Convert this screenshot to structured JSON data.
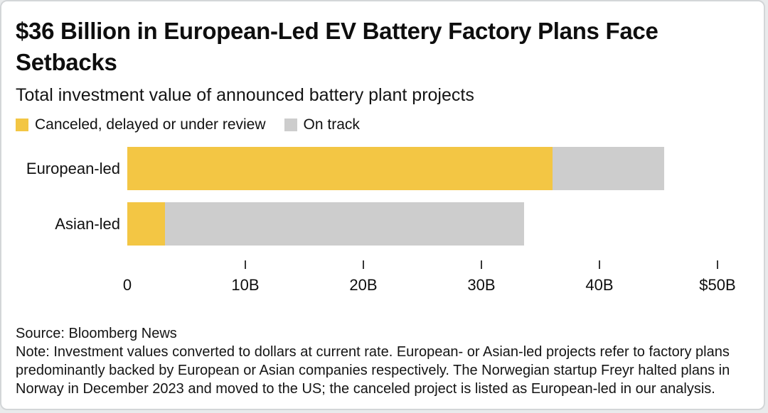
{
  "header": {
    "title": "$36 Billion in European-Led EV Battery Factory Plans Face Setbacks",
    "subtitle": "Total investment value of announced battery plant projects"
  },
  "legend": {
    "canceled_label": "Canceled, delayed or under review",
    "on_track_label": "On track"
  },
  "colors": {
    "canceled": "#F3C644",
    "on_track": "#CDCDCD",
    "tick": "#383838"
  },
  "chart_data": {
    "type": "bar",
    "orientation": "horizontal",
    "stacked": true,
    "title": "$36 Billion in European-Led EV Battery Factory Plans Face Setbacks",
    "subtitle": "Total investment value of announced battery plant projects",
    "categories": [
      "European-led",
      "Asian-led"
    ],
    "series": [
      {
        "name": "Canceled, delayed or under review",
        "color": "#F3C644",
        "values": [
          36,
          3.2
        ]
      },
      {
        "name": "On track",
        "color": "#CDCDCD",
        "values": [
          9.5,
          30.4
        ]
      }
    ],
    "units": "billions of US dollars",
    "xlim": [
      0,
      50
    ],
    "x_ticks": [
      {
        "value": 0,
        "label": "0",
        "tick_mark": false
      },
      {
        "value": 10,
        "label": "10B",
        "tick_mark": true
      },
      {
        "value": 20,
        "label": "20B",
        "tick_mark": true
      },
      {
        "value": 30,
        "label": "30B",
        "tick_mark": true
      },
      {
        "value": 40,
        "label": "40B",
        "tick_mark": true
      },
      {
        "value": 50,
        "label": "$50B",
        "tick_mark": true
      }
    ],
    "grid": false,
    "legend_position": "top-left"
  },
  "footer": {
    "source": "Source: Bloomberg News",
    "note": "Note: Investment values converted to dollars at current rate. European- or Asian-led projects refer to factory plans predominantly backed by European or Asian companies respectively. The Norwegian startup Freyr halted plans in Norway in December 2023 and moved to the US; the canceled project is listed as European-led in our analysis."
  }
}
